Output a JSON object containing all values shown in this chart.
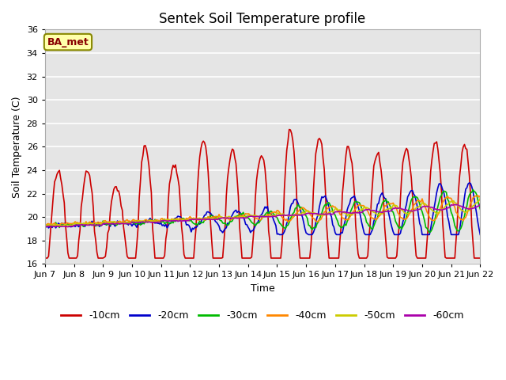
{
  "title": "Sentek Soil Temperature profile",
  "xlabel": "Time",
  "ylabel": "Soil Temperature (C)",
  "ylim": [
    16,
    36
  ],
  "xlim": [
    0,
    360
  ],
  "background_color": "#e5e5e5",
  "label_box_text": "BA_met",
  "x_tick_labels": [
    "Jun 7",
    "Jun 8",
    "Jun 9",
    "Jun 10",
    "Jun 11",
    "Jun 12",
    "Jun 13",
    "Jun 14",
    "Jun 15",
    "Jun 16",
    "Jun 17",
    "Jun 18",
    "Jun 19",
    "Jun 20",
    "Jun 21",
    "Jun 22"
  ],
  "x_tick_positions": [
    0,
    24,
    48,
    72,
    96,
    120,
    144,
    168,
    192,
    216,
    240,
    264,
    288,
    312,
    336,
    360
  ],
  "series": {
    "-10cm": {
      "color": "#cc0000",
      "lw": 1.2
    },
    "-20cm": {
      "color": "#0000cc",
      "lw": 1.2
    },
    "-30cm": {
      "color": "#00bb00",
      "lw": 1.2
    },
    "-40cm": {
      "color": "#ff8800",
      "lw": 1.2
    },
    "-50cm": {
      "color": "#cccc00",
      "lw": 1.2
    },
    "-60cm": {
      "color": "#aa00aa",
      "lw": 1.2
    }
  },
  "title_fontsize": 12,
  "axis_fontsize": 9,
  "tick_fontsize": 8
}
